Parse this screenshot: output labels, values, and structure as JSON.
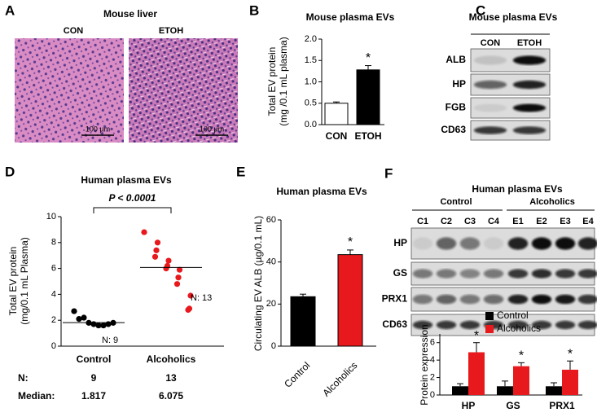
{
  "panel_a": {
    "letter": "A",
    "title": "Mouse liver",
    "labels": [
      "CON",
      "ETOH"
    ],
    "scale_bar": "100 µm"
  },
  "panel_c": {
    "letter": "C",
    "title": "Mouse plasma EVs",
    "lanes": [
      "CON",
      "ETOH"
    ],
    "bands": [
      "ALB",
      "HP",
      "FGB",
      "CD63"
    ]
  },
  "panel_f_blot": {
    "letter": "F",
    "title": "Human plasma EVs",
    "groups": [
      "Control",
      "Alcoholics"
    ],
    "lanes": [
      "C1",
      "C2",
      "C3",
      "C4",
      "E1",
      "E2",
      "E3",
      "E4"
    ],
    "bands": [
      "HP",
      "GS",
      "PRX1",
      "CD63"
    ]
  },
  "chart_data": [
    {
      "type": "bar",
      "letter": "B",
      "title": "Mouse plasma EVs",
      "y_label": [
        "Total EV protein",
        "(mg /0.1 mL plasma)"
      ],
      "categories": [
        "CON",
        "ETOH"
      ],
      "values": [
        0.5,
        1.28
      ],
      "errors": [
        0.03,
        0.1
      ],
      "colors": [
        "#ffffff",
        "#000000"
      ],
      "annotations": [
        null,
        "*"
      ],
      "ylim": [
        0,
        2
      ],
      "yticks": [
        {
          "value": 0,
          "label": "0.0"
        },
        0.5,
        {
          "value": 1,
          "label": "1.0"
        },
        1.5,
        {
          "value": 2,
          "label": "2.0"
        }
      ]
    },
    {
      "type": "scatter",
      "letter": "D",
      "title": "Human plasma EVs",
      "y_label": [
        "Total EV protein",
        "(mg/0.1 mL Plasma)"
      ],
      "categories": [
        "Control",
        "Alcoholics"
      ],
      "points": [
        [
          2.7,
          2.1,
          2.2,
          1.8,
          1.7,
          1.6,
          1.6,
          1.7,
          1.8
        ],
        [
          8.8,
          8.0,
          7.4,
          6.9,
          6.6,
          6.2,
          6.0,
          5.9,
          5.3,
          4.8,
          3.9,
          2.9,
          2.8
        ]
      ],
      "colors": [
        "#000000",
        "#e8191c"
      ],
      "medians": [
        1.817,
        6.075
      ],
      "n": [
        9,
        13
      ],
      "n_labels": [
        "N: 9",
        "N: 13"
      ],
      "table_labels": [
        "N:",
        "Median:"
      ],
      "p_label": "P < 0.0001",
      "ylim": [
        0,
        10
      ],
      "yticks": [
        0,
        2,
        4,
        6,
        8,
        10
      ]
    },
    {
      "type": "bar",
      "letter": "E",
      "title": "Human plasma EVs",
      "y_label": [
        "Circulating EV ALB (µg/0.1 mL)"
      ],
      "categories": [
        "Control",
        "Alcoholics"
      ],
      "values": [
        23.5,
        43.5
      ],
      "errors": [
        1.2,
        2.2
      ],
      "colors": [
        "#000000",
        "#e8191c"
      ],
      "annotations": [
        null,
        "*"
      ],
      "ylim": [
        0,
        60
      ],
      "yticks": [
        0,
        20,
        40,
        60
      ]
    },
    {
      "type": "bar",
      "y_label": [
        "Protein expression"
      ],
      "categories": [
        "HP",
        "GS",
        "PRX1"
      ],
      "series": [
        {
          "name": "Control",
          "color": "#000000",
          "values": [
            1,
            1,
            1
          ],
          "errors": [
            0.3,
            0.6,
            0.4
          ]
        },
        {
          "name": "Alcoholics",
          "color": "#e8191c",
          "values": [
            4.9,
            3.3,
            2.9
          ],
          "errors": [
            1.1,
            0.4,
            1.0
          ],
          "annotations": [
            "*",
            "*",
            "*"
          ]
        }
      ],
      "legend": "top",
      "ylim": [
        0,
        7
      ],
      "yticks": [
        0,
        2,
        4,
        6
      ]
    }
  ]
}
